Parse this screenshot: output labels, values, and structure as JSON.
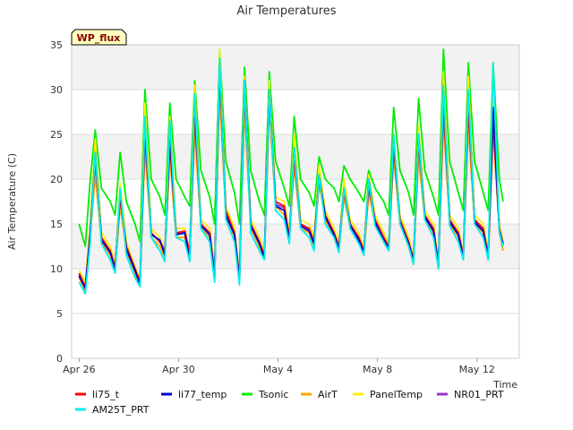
{
  "chart_data": {
    "type": "line",
    "title": "Air Temperatures",
    "xlabel": "Time",
    "ylabel": "Air Temperature (C)",
    "station_badge": "WP_flux",
    "x_tick_labels": [
      "Apr 26",
      "Apr 30",
      "May 4",
      "May 8",
      "May 12"
    ],
    "x_tick_days": [
      0,
      4,
      8,
      12,
      16
    ],
    "x_range_days": [
      -0.3,
      17.7
    ],
    "ylim": [
      0,
      35
    ],
    "y_ticks": [
      0,
      5,
      10,
      15,
      20,
      25,
      30,
      35
    ],
    "grid": "horizontal bands",
    "legend_placement": "bottom",
    "colors": {
      "band": "#f2f2f2",
      "gridline": "#dddddd",
      "badge_fill": "#ffffc0"
    },
    "series": [
      {
        "name": "li75_t",
        "color": "#ff0000",
        "x": [
          0,
          0.25,
          0.45,
          0.65,
          0.9,
          1.25,
          1.45,
          1.65,
          1.9,
          2.25,
          2.45,
          2.65,
          2.9,
          3.25,
          3.45,
          3.65,
          3.9,
          4.25,
          4.45,
          4.65,
          4.9,
          5.25,
          5.45,
          5.65,
          5.9,
          6.25,
          6.45,
          6.65,
          6.9,
          7.25,
          7.45,
          7.65,
          7.9,
          8.25,
          8.45,
          8.65,
          8.9,
          9.25,
          9.45,
          9.65,
          9.9,
          10.25,
          10.45,
          10.65,
          10.9,
          11.25,
          11.45,
          11.65,
          11.9,
          12.25,
          12.45,
          12.65,
          12.9,
          13.25,
          13.45,
          13.65,
          13.9,
          14.25,
          14.45,
          14.65,
          14.9,
          15.25,
          15.45,
          15.65,
          15.9,
          16.25,
          16.45,
          16.65,
          16.9,
          17.05
        ],
        "y": [
          9.5,
          8.0,
          14.0,
          22.0,
          13.5,
          12.0,
          10.2,
          18.0,
          12.5,
          10.0,
          8.5,
          25.0,
          14.0,
          13.0,
          12.0,
          24.0,
          14.0,
          14.2,
          11.8,
          27.0,
          15.0,
          14.0,
          9.5,
          32.0,
          16.5,
          14.0,
          9.0,
          30.0,
          15.0,
          13.0,
          11.5,
          29.5,
          17.5,
          17.0,
          13.5,
          22.5,
          15.0,
          14.5,
          13.0,
          20.0,
          16.0,
          14.0,
          12.5,
          18.5,
          15.0,
          13.5,
          12.0,
          19.0,
          15.5,
          13.5,
          12.5,
          23.5,
          15.5,
          13.0,
          11.0,
          24.0,
          16.0,
          14.5,
          10.5,
          28.0,
          15.5,
          14.0,
          11.5,
          28.0,
          15.5,
          14.5,
          11.5,
          26.5,
          14.5,
          12.5
        ]
      },
      {
        "name": "li77_temp",
        "color": "#0000cc",
        "x": [
          0,
          0.25,
          0.45,
          0.65,
          0.9,
          1.25,
          1.45,
          1.65,
          1.9,
          2.25,
          2.45,
          2.65,
          2.9,
          3.25,
          3.45,
          3.65,
          3.9,
          4.25,
          4.45,
          4.65,
          4.9,
          5.25,
          5.45,
          5.65,
          5.9,
          6.25,
          6.45,
          6.65,
          6.9,
          7.25,
          7.45,
          7.65,
          7.9,
          8.25,
          8.45,
          8.65,
          8.9,
          9.25,
          9.45,
          9.65,
          9.9,
          10.25,
          10.45,
          10.65,
          10.9,
          11.25,
          11.45,
          11.65,
          11.9,
          12.25,
          12.45,
          12.65,
          12.9,
          13.25,
          13.45,
          13.65,
          13.9,
          14.25,
          14.45,
          14.65,
          14.9,
          15.25,
          15.45,
          15.65,
          15.9,
          16.25,
          16.45,
          16.65,
          16.9,
          17.05
        ],
        "y": [
          9.2,
          7.8,
          13.8,
          23.0,
          13.2,
          11.8,
          10.0,
          18.5,
          12.2,
          9.8,
          8.3,
          26.0,
          13.8,
          13.2,
          11.5,
          25.0,
          13.8,
          14.0,
          11.0,
          29.0,
          14.8,
          13.8,
          9.0,
          33.0,
          16.0,
          13.8,
          8.8,
          31.0,
          14.8,
          12.8,
          11.2,
          30.0,
          17.0,
          16.5,
          13.2,
          23.5,
          14.8,
          14.2,
          12.8,
          20.5,
          15.8,
          13.8,
          12.2,
          19.0,
          14.8,
          13.2,
          11.8,
          20.0,
          15.2,
          13.2,
          12.2,
          24.5,
          15.2,
          12.8,
          10.8,
          25.0,
          15.8,
          14.2,
          10.2,
          30.0,
          15.2,
          13.8,
          11.2,
          29.5,
          15.2,
          14.2,
          11.2,
          28.0,
          14.2,
          12.8
        ]
      },
      {
        "name": "Tsonic",
        "color": "#00ee00",
        "x": [
          0,
          0.25,
          0.45,
          0.65,
          0.9,
          1.25,
          1.45,
          1.65,
          1.9,
          2.25,
          2.45,
          2.65,
          2.9,
          3.25,
          3.45,
          3.65,
          3.9,
          4.25,
          4.45,
          4.65,
          4.9,
          5.25,
          5.45,
          5.65,
          5.9,
          6.25,
          6.45,
          6.65,
          6.9,
          7.25,
          7.45,
          7.65,
          7.9,
          8.25,
          8.45,
          8.65,
          8.9,
          9.25,
          9.45,
          9.65,
          9.9,
          10.25,
          10.45,
          10.65,
          10.9,
          11.25,
          11.45,
          11.65,
          11.9,
          12.25,
          12.45,
          12.65,
          12.9,
          13.25,
          13.45,
          13.65,
          13.9,
          14.25,
          14.45,
          14.65,
          14.9,
          15.25,
          15.45,
          15.65,
          15.9,
          16.25,
          16.45,
          16.65,
          16.9,
          17.05
        ],
        "y": [
          15.0,
          12.5,
          20.0,
          25.5,
          19.0,
          17.5,
          16.0,
          23.0,
          17.5,
          15.0,
          13.0,
          30.0,
          20.0,
          18.0,
          16.0,
          28.5,
          20.0,
          18.0,
          17.0,
          31.0,
          21.0,
          18.0,
          15.0,
          34.5,
          22.0,
          18.5,
          15.0,
          32.5,
          21.0,
          17.5,
          16.0,
          32.0,
          22.0,
          19.0,
          17.0,
          27.0,
          20.0,
          18.5,
          17.0,
          22.5,
          20.0,
          19.0,
          17.5,
          21.5,
          20.0,
          18.5,
          17.5,
          21.0,
          19.0,
          17.5,
          16.0,
          28.0,
          21.0,
          18.5,
          16.0,
          29.0,
          21.0,
          18.0,
          16.0,
          34.5,
          22.0,
          18.5,
          16.5,
          33.0,
          22.0,
          18.5,
          16.5,
          33.0,
          20.0,
          17.5
        ]
      },
      {
        "name": "AirT",
        "color": "#ffa500",
        "x": [
          0,
          0.25,
          0.45,
          0.65,
          0.9,
          1.25,
          1.45,
          1.65,
          1.9,
          2.25,
          2.45,
          2.65,
          2.9,
          3.25,
          3.45,
          3.65,
          3.9,
          4.25,
          4.45,
          4.65,
          4.9,
          5.25,
          5.45,
          5.65,
          5.9,
          6.25,
          6.45,
          6.65,
          6.9,
          7.25,
          7.45,
          7.65,
          7.9,
          8.25,
          8.45,
          8.65,
          8.9,
          9.25,
          9.45,
          9.65,
          9.9,
          10.25,
          10.45,
          10.65,
          10.9,
          11.25,
          11.45,
          11.65,
          11.9,
          12.25,
          12.45,
          12.65,
          12.9,
          13.25,
          13.45,
          13.65,
          13.9,
          14.25,
          14.45,
          14.65,
          14.9,
          15.25,
          15.45,
          15.65,
          15.9,
          16.25,
          16.45,
          16.65,
          16.9,
          17.05
        ],
        "y": [
          9.0,
          7.5,
          13.5,
          20.5,
          13.0,
          11.5,
          9.8,
          17.0,
          12.0,
          9.5,
          8.0,
          23.5,
          13.5,
          12.5,
          11.2,
          22.5,
          13.5,
          13.5,
          11.0,
          25.5,
          14.5,
          13.5,
          9.0,
          29.5,
          16.0,
          13.5,
          8.5,
          28.0,
          14.5,
          12.5,
          11.0,
          28.0,
          17.0,
          16.0,
          13.0,
          21.5,
          14.5,
          14.0,
          12.5,
          19.5,
          15.5,
          13.5,
          12.0,
          18.0,
          14.5,
          13.0,
          11.5,
          18.5,
          15.0,
          13.0,
          12.0,
          22.5,
          15.0,
          12.5,
          10.5,
          22.5,
          15.5,
          14.0,
          10.0,
          26.5,
          15.0,
          13.5,
          11.0,
          26.0,
          15.0,
          14.0,
          11.0,
          25.5,
          14.0,
          12.0
        ]
      },
      {
        "name": "PanelTemp",
        "color": "#ffee00",
        "x": [
          0,
          0.25,
          0.45,
          0.65,
          0.9,
          1.25,
          1.45,
          1.65,
          1.9,
          2.25,
          2.45,
          2.65,
          2.9,
          3.25,
          3.45,
          3.65,
          3.9,
          4.25,
          4.45,
          4.65,
          4.9,
          5.25,
          5.45,
          5.65,
          5.9,
          6.25,
          6.45,
          6.65,
          6.9,
          7.25,
          7.45,
          7.65,
          7.9,
          8.25,
          8.45,
          8.65,
          8.9,
          9.25,
          9.45,
          9.65,
          9.9,
          10.25,
          10.45,
          10.65,
          10.9,
          11.25,
          11.45,
          11.65,
          11.9,
          12.25,
          12.45,
          12.65,
          12.9,
          13.25,
          13.45,
          13.65,
          13.9,
          14.25,
          14.45,
          14.65,
          14.9,
          15.25,
          15.45,
          15.65,
          15.9,
          16.25,
          16.45,
          16.65,
          16.9,
          17.05
        ],
        "y": [
          9.8,
          8.5,
          15.0,
          24.5,
          14.0,
          12.5,
          10.5,
          19.5,
          13.0,
          10.2,
          8.8,
          28.5,
          14.5,
          13.5,
          12.0,
          27.0,
          14.5,
          14.5,
          11.8,
          30.5,
          15.5,
          14.5,
          9.8,
          34.5,
          17.0,
          14.5,
          9.2,
          31.5,
          15.5,
          13.5,
          11.8,
          31.0,
          18.0,
          17.5,
          14.0,
          25.0,
          15.5,
          15.0,
          13.5,
          21.5,
          16.5,
          14.5,
          12.8,
          20.0,
          15.5,
          14.0,
          12.2,
          20.5,
          16.0,
          14.0,
          12.8,
          25.0,
          16.0,
          13.5,
          11.2,
          26.0,
          16.5,
          15.0,
          10.8,
          32.0,
          16.0,
          14.5,
          11.8,
          31.5,
          16.0,
          15.0,
          11.8,
          29.0,
          15.0,
          13.0
        ]
      },
      {
        "name": "NR01_PRT",
        "color": "#9932cc",
        "x": [
          0,
          0.25,
          0.45,
          0.65,
          0.9,
          1.25,
          1.45,
          1.65,
          1.9,
          2.25,
          2.45,
          2.65,
          2.9,
          3.25,
          3.45,
          3.65,
          3.9,
          4.25,
          4.45,
          4.65,
          4.9,
          5.25,
          5.45,
          5.65,
          5.9,
          6.25,
          6.45,
          6.65,
          6.9,
          7.25,
          7.45,
          7.65,
          7.9,
          8.25,
          8.45,
          8.65,
          8.9,
          9.25,
          9.45,
          9.65,
          9.9,
          10.25,
          10.45,
          10.65,
          10.9,
          11.25,
          11.45,
          11.65,
          11.9,
          12.25,
          12.45,
          12.65,
          12.9,
          13.25,
          13.45,
          13.65,
          13.9,
          14.25,
          14.45,
          14.65,
          14.9,
          15.25,
          15.45,
          15.65,
          15.9,
          16.25,
          16.45,
          16.65,
          16.9,
          17.05
        ],
        "y": [
          9.3,
          7.9,
          14.0,
          22.5,
          13.4,
          12.0,
          10.0,
          18.0,
          12.4,
          10.0,
          8.4,
          25.5,
          14.0,
          13.0,
          11.8,
          24.5,
          14.0,
          14.0,
          11.5,
          28.0,
          15.0,
          14.0,
          9.2,
          32.5,
          16.2,
          14.0,
          8.9,
          30.5,
          15.0,
          13.0,
          11.4,
          29.5,
          17.2,
          16.8,
          13.4,
          23.0,
          15.0,
          14.4,
          13.0,
          20.0,
          16.0,
          14.0,
          12.4,
          18.8,
          15.0,
          13.4,
          12.0,
          19.5,
          15.4,
          13.4,
          12.4,
          24.0,
          15.4,
          13.0,
          11.0,
          24.5,
          16.0,
          14.4,
          10.4,
          29.0,
          15.4,
          14.0,
          11.4,
          29.0,
          15.4,
          14.4,
          11.4,
          27.5,
          14.4,
          12.8
        ]
      },
      {
        "name": "AM25T_PRT",
        "color": "#00eeee",
        "x": [
          0,
          0.25,
          0.45,
          0.65,
          0.9,
          1.25,
          1.45,
          1.65,
          1.9,
          2.25,
          2.45,
          2.65,
          2.9,
          3.25,
          3.45,
          3.65,
          3.9,
          4.25,
          4.45,
          4.65,
          4.9,
          5.25,
          5.45,
          5.65,
          5.9,
          6.25,
          6.45,
          6.65,
          6.9,
          7.25,
          7.45,
          7.65,
          7.9,
          8.25,
          8.45,
          8.65,
          8.9,
          9.25,
          9.45,
          9.65,
          9.9,
          10.25,
          10.45,
          10.65,
          10.9,
          11.25,
          11.45,
          11.65,
          11.9,
          12.25,
          12.45,
          12.65,
          12.9,
          13.25,
          13.45,
          13.65,
          13.9,
          14.25,
          14.45,
          14.65,
          14.9,
          15.25,
          15.45,
          15.65,
          15.9,
          16.25,
          16.45,
          16.65,
          16.9,
          17.05
        ],
        "y": [
          8.5,
          7.2,
          13.0,
          23.0,
          12.8,
          11.0,
          9.5,
          19.0,
          11.5,
          9.0,
          8.0,
          27.0,
          13.5,
          12.0,
          10.8,
          26.5,
          13.5,
          13.0,
          10.8,
          29.5,
          14.5,
          13.0,
          8.5,
          33.5,
          15.5,
          13.0,
          8.2,
          31.0,
          14.0,
          12.0,
          11.0,
          30.0,
          16.5,
          15.5,
          12.8,
          23.5,
          14.5,
          13.5,
          12.0,
          20.5,
          15.0,
          13.5,
          11.8,
          19.0,
          14.5,
          12.8,
          11.5,
          20.0,
          14.8,
          13.0,
          12.0,
          25.0,
          15.0,
          12.5,
          10.5,
          25.0,
          15.5,
          13.5,
          10.0,
          30.5,
          14.8,
          13.0,
          11.0,
          30.0,
          15.0,
          13.5,
          11.0,
          33.0,
          14.0,
          12.5
        ]
      }
    ]
  }
}
